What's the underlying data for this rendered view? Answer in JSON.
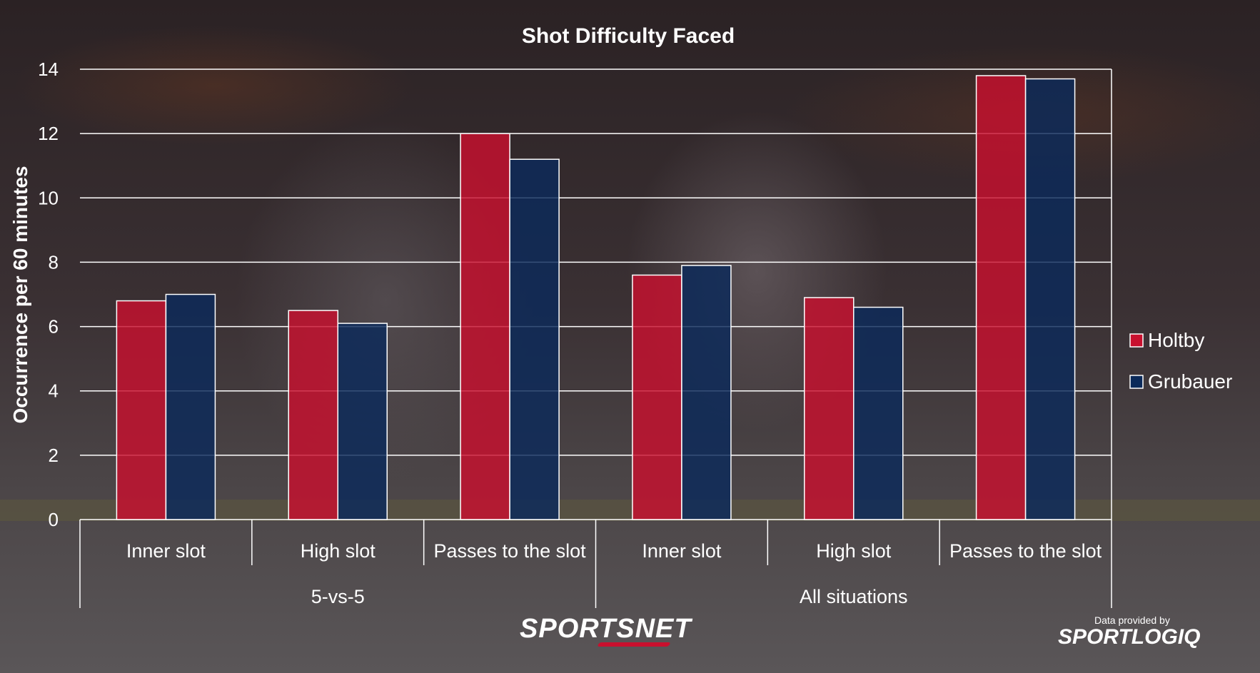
{
  "chart_data": {
    "type": "bar",
    "title": "Shot Difficulty Faced",
    "ylabel": "Occurrence per 60 minutes",
    "xlabel": "",
    "ylim": [
      0,
      14
    ],
    "yticks": [
      0,
      2,
      4,
      6,
      8,
      10,
      12,
      14
    ],
    "grid": true,
    "legend_position": "right",
    "groups": [
      {
        "label": "5-vs-5",
        "categories": [
          "Inner slot",
          "High slot",
          "Passes to the slot"
        ]
      },
      {
        "label": "All situations",
        "categories": [
          "Inner slot",
          "High slot",
          "Passes to the slot"
        ]
      }
    ],
    "categories": [
      "Inner slot",
      "High slot",
      "Passes to the slot",
      "Inner slot",
      "High slot",
      "Passes to the slot"
    ],
    "series": [
      {
        "name": "Holtby",
        "color": "#c8102e",
        "values": [
          6.8,
          6.5,
          12.0,
          7.6,
          6.9,
          13.8
        ]
      },
      {
        "name": "Grubauer",
        "color": "#0b2a5a",
        "values": [
          7.0,
          6.1,
          11.2,
          7.9,
          6.6,
          13.7
        ]
      }
    ]
  },
  "footer": {
    "brand": "SPORTSNET",
    "provided_by": "Data provided by",
    "provider": "SPORTLOGIQ"
  }
}
